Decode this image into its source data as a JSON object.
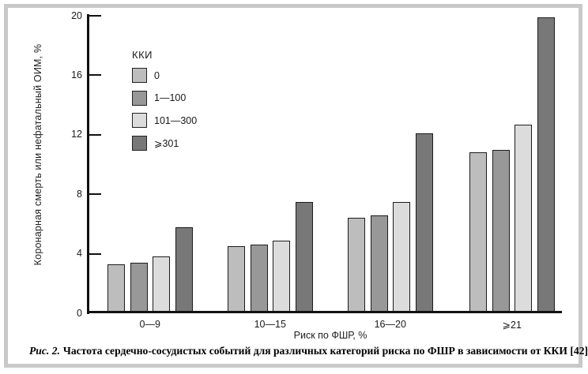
{
  "chart_data": {
    "type": "bar",
    "categories": [
      "0—9",
      "10—15",
      "16—20",
      "⩾21"
    ],
    "series": [
      {
        "name": "0",
        "color": "#bdbdbd",
        "values": [
          3.3,
          4.5,
          6.4,
          10.8
        ]
      },
      {
        "name": "1—100",
        "color": "#989898",
        "values": [
          3.4,
          4.6,
          6.6,
          11.0
        ]
      },
      {
        "name": "101—300",
        "color": "#dcdcdc",
        "values": [
          3.8,
          4.9,
          7.5,
          12.7
        ]
      },
      {
        "name": "⩾301",
        "color": "#787878",
        "values": [
          5.8,
          7.5,
          12.1,
          19.9
        ]
      }
    ],
    "xlabel": "Риск по ФШР, %",
    "ylabel": "Коронарная смерть или нефатальный ОИМ, %",
    "ylim": [
      0,
      20
    ],
    "yticks": [
      0,
      4,
      8,
      12,
      16,
      20
    ],
    "legend_title": "ККИ",
    "legend_position": "upper-left-inside",
    "grid": false,
    "bar_outline_color": "#1c1c1c",
    "axis_color": "#111111"
  },
  "caption": {
    "label": "Рис. 2.",
    "text": "Частота сердечно-сосудистых событий  для различных категорий риска по ФШР в зависимости от ККИ [42]."
  },
  "frame": {
    "border_color": "#c9c9c9"
  }
}
